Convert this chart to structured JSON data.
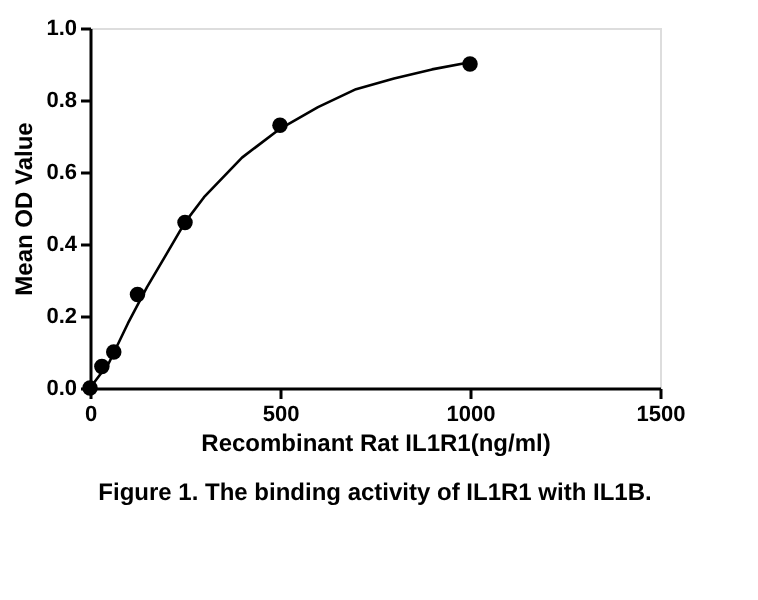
{
  "chart_data": {
    "type": "scatter",
    "xlabel": "Recombinant Rat IL1R1(ng/ml)",
    "ylabel": "Mean OD Value",
    "annotations": [
      "Figure 1. The binding activity of IL1R1 with IL1B."
    ],
    "xlim": [
      0,
      1500
    ],
    "xticks": [
      0,
      500,
      1000,
      1500
    ],
    "ylim": [
      0,
      1.0
    ],
    "yticks": [
      {
        "value": 0,
        "label": "0.0"
      },
      0.2,
      0.4,
      0.6,
      0.8,
      {
        "value": 1.0,
        "label": "1.0"
      }
    ],
    "grid": false,
    "series": [
      {
        "marker": "circle",
        "color": "#000000",
        "x": [
          0,
          31.25,
          62.5,
          125,
          250,
          500,
          1000
        ],
        "values": [
          0,
          0.06,
          0.1,
          0.26,
          0.46,
          0.73,
          0.9
        ]
      },
      {
        "type": "line",
        "color": "#000000",
        "line_style": "solid",
        "x": [
          0,
          50,
          100,
          150,
          200,
          250,
          300,
          400,
          500,
          600,
          700,
          800,
          900,
          1000
        ],
        "values": [
          0,
          0.07,
          0.18,
          0.28,
          0.37,
          0.46,
          0.53,
          0.64,
          0.72,
          0.78,
          0.83,
          0.86,
          0.885,
          0.905
        ]
      }
    ]
  }
}
